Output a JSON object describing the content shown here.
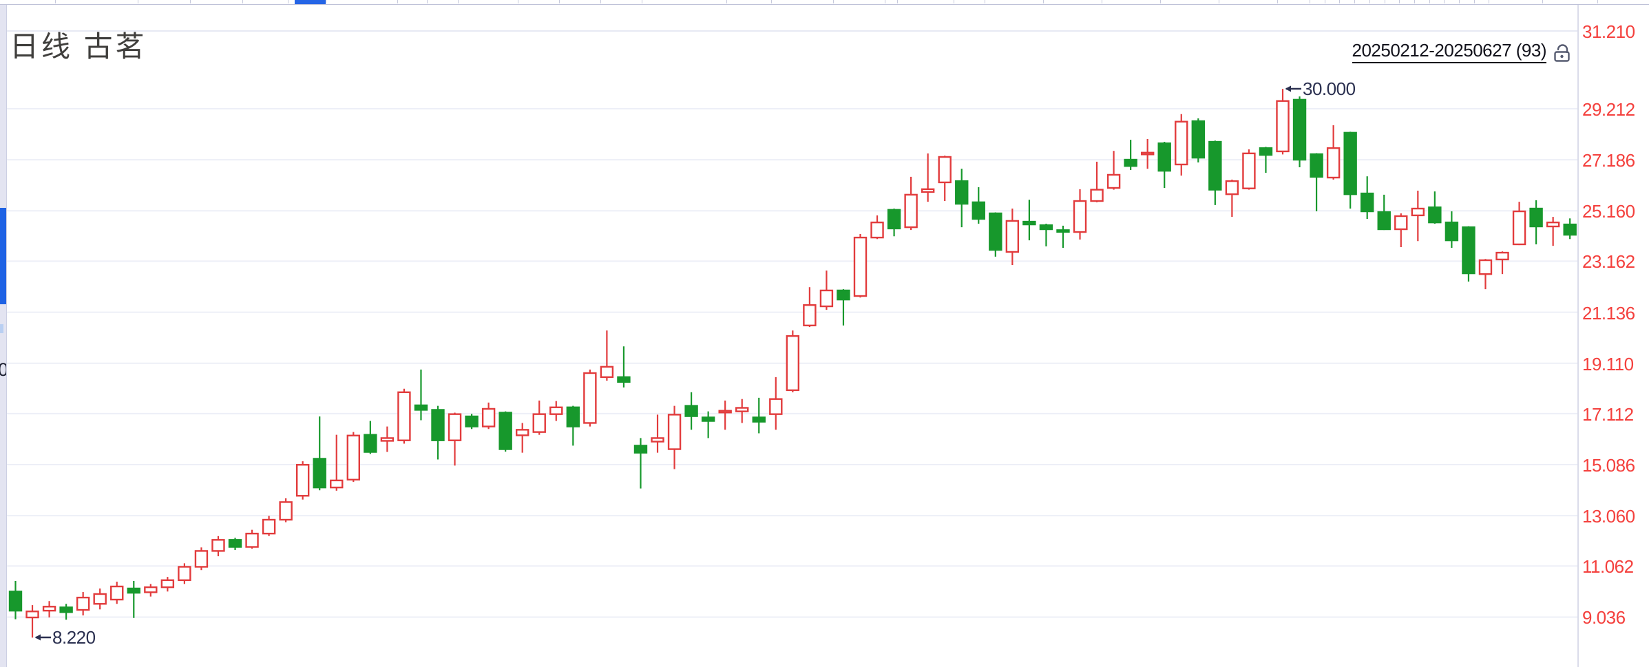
{
  "header": {
    "title": "日线  古茗"
  },
  "range_control": {
    "label": "20250212-20250627 (93)",
    "icon": "open-lock-icon"
  },
  "sidebar": {
    "fragment_text": "0"
  },
  "colors": {
    "up": "#e23b3c",
    "down": "#17982c",
    "axis_text": "#f4403d",
    "gridline": "#edeff7",
    "top_gridline": "#e7e9f3",
    "axis_line": "#dadcea",
    "annotation_text": "#2b3050",
    "toolbar_active": "#2565e6",
    "scroll_thumb": "#1e62e4"
  },
  "chart_data": {
    "type": "candlestick",
    "period": "日线",
    "symbol": "古茗",
    "visible_range": "20250212-20250627 (93)",
    "bars_count": 93,
    "y_axis_labels": [
      "31.210",
      "29.212",
      "27.186",
      "25.160",
      "23.162",
      "21.136",
      "19.110",
      "17.112",
      "15.086",
      "13.060",
      "11.062",
      "9.036"
    ],
    "grid": true,
    "legend_position": "none",
    "up_style": "hollow-red",
    "down_style": "solid-green",
    "annotations": [
      {
        "text": "30.000",
        "candle": 76,
        "anchor": "high"
      },
      {
        "text": "8.220",
        "candle": 2,
        "anchor": "low"
      }
    ],
    "candles_ohlc_format": [
      "open",
      "high",
      "low",
      "close"
    ],
    "candles": [
      [
        10.05,
        10.47,
        8.95,
        9.29
      ],
      [
        9.02,
        9.51,
        8.22,
        9.26
      ],
      [
        9.29,
        9.67,
        9.02,
        9.45
      ],
      [
        9.42,
        9.56,
        8.93,
        9.23
      ],
      [
        9.32,
        10.03,
        9.1,
        9.81
      ],
      [
        9.56,
        10.17,
        9.34,
        9.95
      ],
      [
        9.73,
        10.44,
        9.56,
        10.25
      ],
      [
        10.17,
        10.47,
        9.0,
        10.0
      ],
      [
        10.02,
        10.35,
        9.85,
        10.22
      ],
      [
        10.22,
        10.63,
        10.05,
        10.5
      ],
      [
        10.5,
        11.17,
        10.35,
        11.03
      ],
      [
        11.03,
        11.8,
        10.9,
        11.66
      ],
      [
        11.66,
        12.25,
        11.45,
        12.1
      ],
      [
        12.1,
        12.18,
        11.7,
        11.82
      ],
      [
        11.82,
        12.5,
        11.75,
        12.35
      ],
      [
        12.35,
        13.05,
        12.25,
        12.9
      ],
      [
        12.9,
        13.75,
        12.8,
        13.6
      ],
      [
        13.85,
        15.22,
        13.7,
        15.08
      ],
      [
        15.32,
        17.0,
        14.07,
        14.18
      ],
      [
        14.18,
        16.27,
        14.05,
        14.46
      ],
      [
        14.49,
        16.38,
        14.4,
        16.24
      ],
      [
        16.27,
        16.82,
        15.51,
        15.59
      ],
      [
        16.03,
        16.6,
        15.59,
        16.14
      ],
      [
        16.05,
        18.1,
        15.92,
        17.96
      ],
      [
        17.44,
        18.86,
        16.85,
        17.26
      ],
      [
        17.26,
        17.42,
        15.29,
        16.05
      ],
      [
        16.05,
        17.15,
        15.05,
        17.09
      ],
      [
        17.0,
        17.1,
        16.5,
        16.6
      ],
      [
        16.6,
        17.55,
        16.5,
        17.3
      ],
      [
        17.15,
        17.2,
        15.6,
        15.7
      ],
      [
        16.25,
        16.74,
        15.56,
        16.47
      ],
      [
        16.38,
        17.63,
        16.27,
        17.09
      ],
      [
        17.09,
        17.61,
        16.82,
        17.36
      ],
      [
        17.36,
        17.42,
        15.84,
        16.6
      ],
      [
        16.74,
        18.86,
        16.6,
        18.72
      ],
      [
        18.56,
        20.41,
        18.42,
        18.97
      ],
      [
        18.56,
        19.78,
        18.15,
        18.37
      ],
      [
        15.84,
        16.14,
        14.14,
        15.56
      ],
      [
        16.0,
        17.07,
        15.56,
        16.14
      ],
      [
        15.7,
        17.42,
        14.91,
        17.07
      ],
      [
        17.42,
        17.96,
        16.47,
        17.01
      ],
      [
        16.96,
        17.2,
        16.14,
        16.82
      ],
      [
        17.18,
        17.63,
        16.47,
        17.2
      ],
      [
        17.2,
        17.69,
        16.74,
        17.34
      ],
      [
        16.96,
        17.74,
        16.33,
        16.79
      ],
      [
        17.09,
        18.56,
        16.47,
        17.69
      ],
      [
        18.04,
        20.41,
        17.96,
        20.19
      ],
      [
        20.61,
        22.13,
        20.55,
        21.42
      ],
      [
        21.37,
        22.79,
        21.23,
        22.0
      ],
      [
        22.0,
        22.05,
        20.61,
        21.64
      ],
      [
        21.78,
        24.24,
        21.72,
        24.1
      ],
      [
        24.1,
        24.98,
        24.04,
        24.7
      ],
      [
        25.2,
        25.25,
        24.15,
        24.46
      ],
      [
        24.51,
        26.51,
        24.4,
        25.8
      ],
      [
        25.91,
        27.44,
        25.52,
        26.02
      ],
      [
        26.29,
        27.35,
        25.55,
        27.3
      ],
      [
        26.34,
        26.83,
        24.51,
        25.44
      ],
      [
        25.5,
        26.1,
        24.65,
        24.84
      ],
      [
        25.06,
        25.1,
        23.34,
        23.61
      ],
      [
        23.53,
        25.25,
        23.01,
        24.76
      ],
      [
        24.73,
        25.6,
        23.99,
        24.62
      ],
      [
        24.59,
        24.65,
        23.75,
        24.43
      ],
      [
        24.37,
        24.57,
        23.69,
        24.35
      ],
      [
        24.32,
        26.02,
        24.02,
        25.55
      ],
      [
        25.55,
        27.11,
        25.5,
        26.0
      ],
      [
        26.07,
        27.54,
        26.0,
        26.59
      ],
      [
        27.19,
        27.98,
        26.78,
        26.94
      ],
      [
        27.41,
        28.01,
        26.83,
        27.46
      ],
      [
        27.84,
        27.9,
        26.07,
        26.75
      ],
      [
        27.0,
        29.0,
        26.56,
        28.7
      ],
      [
        28.72,
        28.83,
        27.08,
        27.27
      ],
      [
        27.9,
        27.95,
        25.39,
        26.0
      ],
      [
        25.82,
        26.4,
        24.92,
        26.34
      ],
      [
        26.05,
        27.6,
        26.0,
        27.44
      ],
      [
        27.65,
        27.7,
        26.67,
        27.38
      ],
      [
        27.52,
        30.0,
        27.4,
        29.52
      ],
      [
        29.57,
        29.7,
        26.89,
        27.19
      ],
      [
        27.41,
        27.45,
        25.14,
        26.51
      ],
      [
        26.48,
        28.56,
        26.4,
        27.65
      ],
      [
        28.26,
        28.3,
        25.25,
        25.82
      ],
      [
        25.85,
        26.53,
        24.84,
        25.14
      ],
      [
        25.11,
        25.8,
        24.4,
        24.43
      ],
      [
        24.43,
        25.06,
        23.72,
        24.95
      ],
      [
        24.98,
        25.96,
        23.96,
        25.25
      ],
      [
        25.3,
        25.93,
        24.65,
        24.7
      ],
      [
        24.7,
        25.14,
        23.69,
        23.99
      ],
      [
        24.51,
        24.55,
        22.35,
        22.68
      ],
      [
        22.65,
        23.25,
        22.05,
        23.2
      ],
      [
        23.23,
        23.55,
        22.65,
        23.5
      ],
      [
        23.83,
        25.52,
        23.8,
        25.14
      ],
      [
        25.25,
        25.58,
        23.83,
        24.54
      ],
      [
        24.54,
        24.92,
        23.77,
        24.7
      ],
      [
        24.62,
        24.86,
        24.04,
        24.21
      ]
    ]
  }
}
